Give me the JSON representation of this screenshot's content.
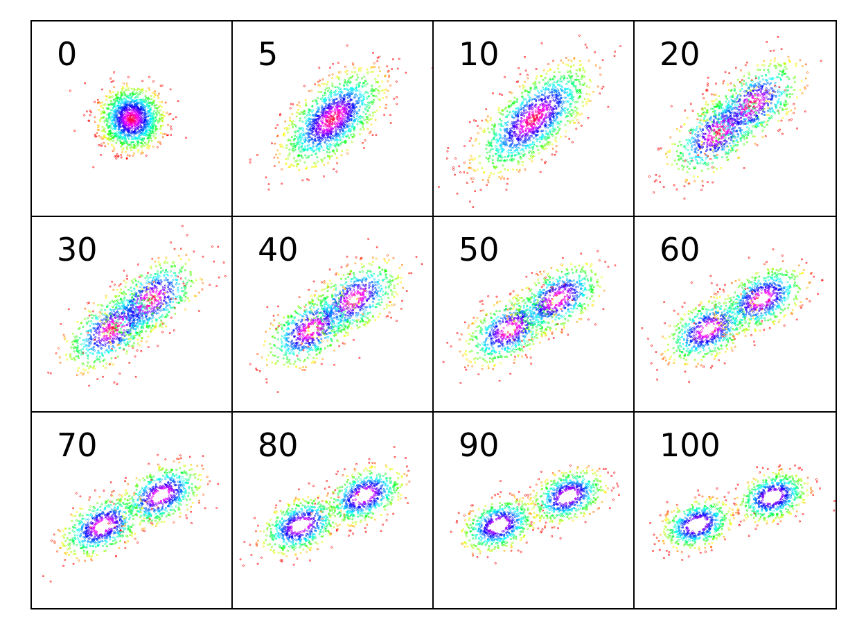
{
  "chart_data": {
    "type": "scatter",
    "layout": "grid 3x4",
    "colormap": "hsv (red center, then magenta, blue, cyan, green, yellow, orange, red edge)",
    "marker": "hollow circle",
    "grid": false,
    "axes_ticks": false,
    "panels": [
      {
        "label": "0",
        "state": 0
      },
      {
        "label": "5",
        "state": 5
      },
      {
        "label": "10",
        "state": 10
      },
      {
        "label": "20",
        "state": 20
      },
      {
        "label": "30",
        "state": 30
      },
      {
        "label": "40",
        "state": 40
      },
      {
        "label": "50",
        "state": 50
      },
      {
        "label": "60",
        "state": 60
      },
      {
        "label": "70",
        "state": 70
      },
      {
        "label": "80",
        "state": 80
      },
      {
        "label": "90",
        "state": 90
      },
      {
        "label": "100",
        "state": 100
      }
    ]
  }
}
